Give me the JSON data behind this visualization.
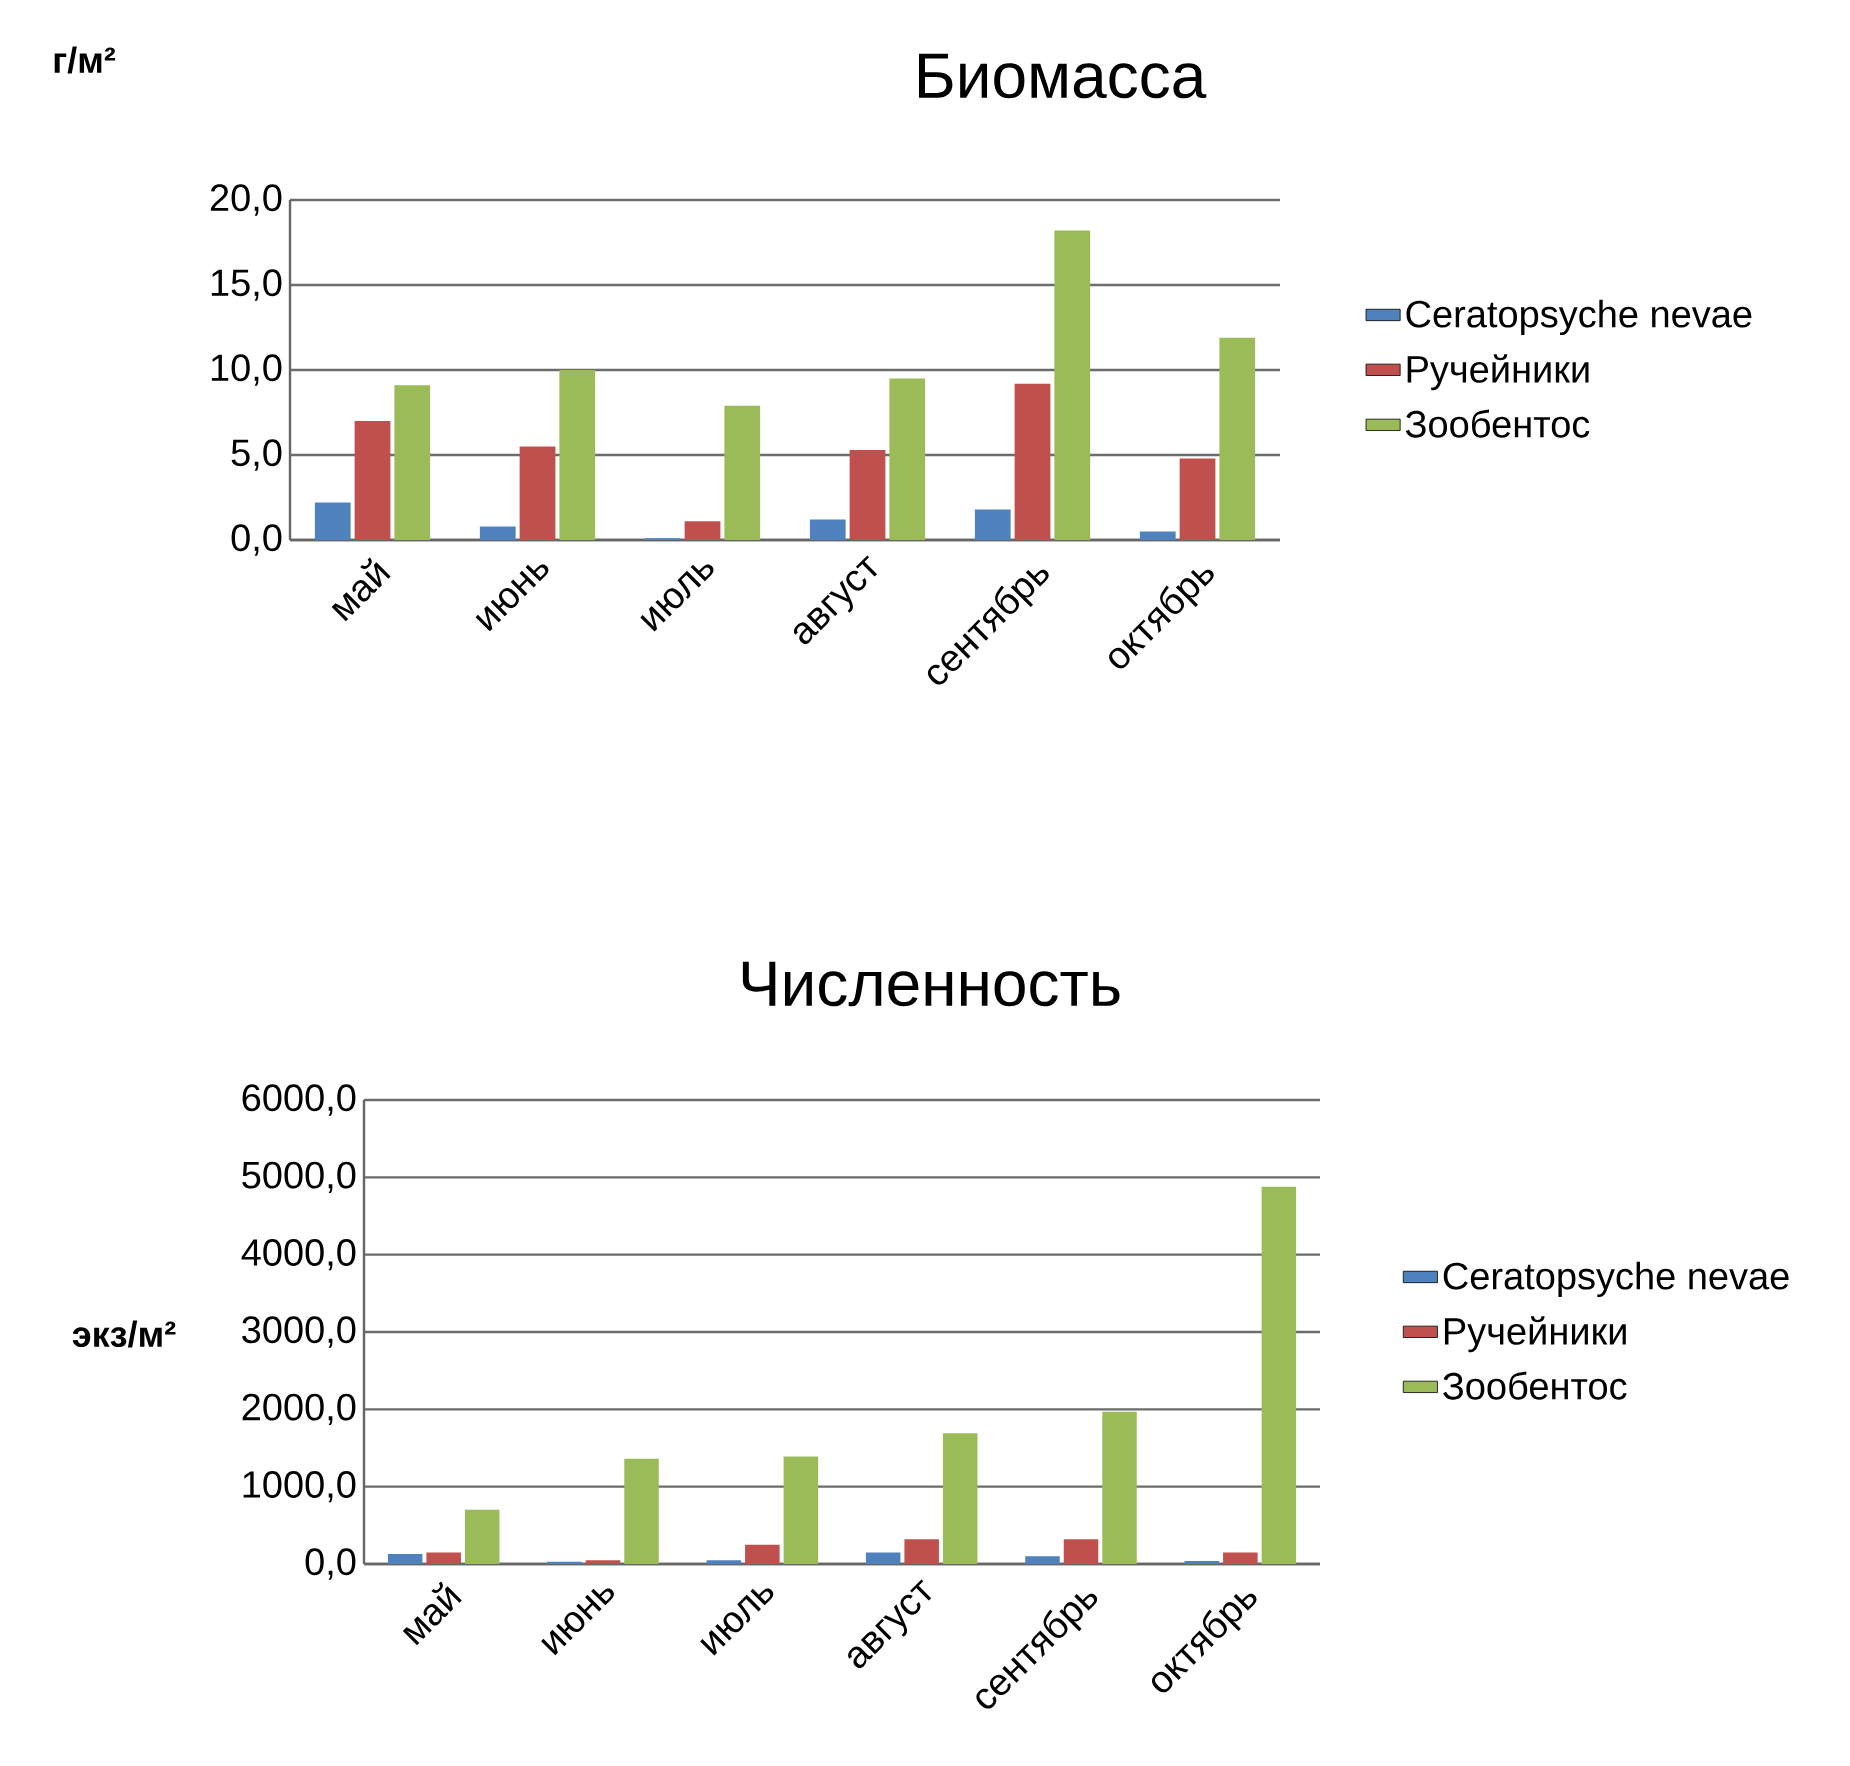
{
  "chart_data": [
    {
      "type": "bar",
      "title": "Биомасса",
      "ylabel": "г/м²",
      "categories": [
        "май",
        "июнь",
        "июль",
        "август",
        "сентябрь",
        "октябрь"
      ],
      "series": [
        {
          "name": "Ceratopsyche nevae",
          "color": "#4f81bd",
          "values": [
            2.2,
            0.8,
            0.1,
            1.2,
            1.8,
            0.5
          ]
        },
        {
          "name": "Ручейники",
          "color": "#c0504d",
          "values": [
            7.0,
            5.5,
            1.1,
            5.3,
            9.2,
            4.8
          ]
        },
        {
          "name": "Зообентос",
          "color": "#9bbb59",
          "values": [
            9.1,
            10.0,
            7.9,
            9.5,
            18.2,
            11.9
          ]
        }
      ],
      "ylim": [
        0,
        20
      ],
      "yticks": [
        {
          "value": 0,
          "label": "0,0"
        },
        {
          "value": 5,
          "label": "5,0"
        },
        {
          "value": 10,
          "label": "10,0"
        },
        {
          "value": 15,
          "label": "15,0"
        },
        {
          "value": 20,
          "label": "20,0"
        }
      ],
      "grid": "y",
      "legend": "right"
    },
    {
      "type": "bar",
      "title": "Численность",
      "ylabel": "экз/м²",
      "categories": [
        "май",
        "июнь",
        "июль",
        "август",
        "сентябрь",
        "октябрь"
      ],
      "series": [
        {
          "name": "Ceratopsyche nevae",
          "color": "#4f81bd",
          "values": [
            130,
            30,
            50,
            150,
            100,
            40
          ]
        },
        {
          "name": "Ручейники",
          "color": "#c0504d",
          "values": [
            150,
            50,
            250,
            320,
            320,
            150
          ]
        },
        {
          "name": "Зообентос",
          "color": "#9bbb59",
          "values": [
            700,
            1360,
            1390,
            1690,
            1970,
            4880
          ]
        }
      ],
      "ylim": [
        0,
        6000
      ],
      "yticks": [
        {
          "value": 0,
          "label": "0,0"
        },
        {
          "value": 1000,
          "label": "1000,0"
        },
        {
          "value": 2000,
          "label": "2000,0"
        },
        {
          "value": 3000,
          "label": "3000,0"
        },
        {
          "value": 4000,
          "label": "4000,0"
        },
        {
          "value": 5000,
          "label": "5000,0"
        },
        {
          "value": 6000,
          "label": "6000,0"
        }
      ],
      "grid": "y",
      "legend": "right"
    }
  ]
}
